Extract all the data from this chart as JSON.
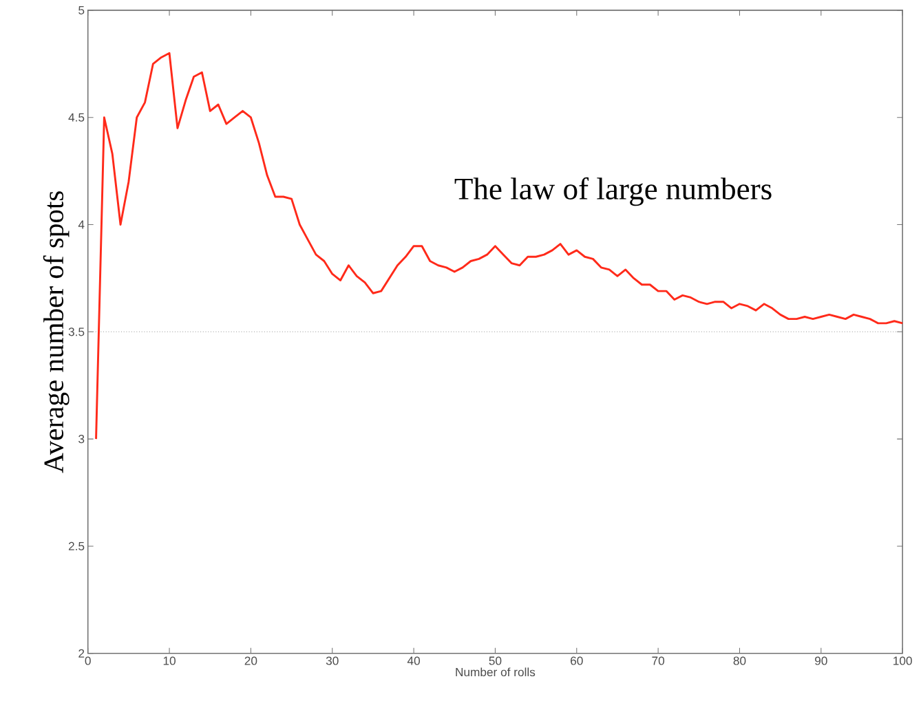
{
  "chart_data": {
    "type": "line",
    "annotations": [
      "The law of large numbers"
    ],
    "xlabel": "Number of rolls",
    "ylabel": "Average number of spots",
    "x": [
      1,
      2,
      3,
      4,
      5,
      6,
      7,
      8,
      9,
      10,
      11,
      12,
      13,
      14,
      15,
      16,
      17,
      18,
      19,
      20,
      21,
      22,
      23,
      24,
      25,
      26,
      27,
      28,
      29,
      30,
      31,
      32,
      33,
      34,
      35,
      36,
      37,
      38,
      39,
      40,
      41,
      42,
      43,
      44,
      45,
      46,
      47,
      48,
      49,
      50,
      51,
      52,
      53,
      54,
      55,
      56,
      57,
      58,
      59,
      60,
      61,
      62,
      63,
      64,
      65,
      66,
      67,
      68,
      69,
      70,
      71,
      72,
      73,
      74,
      75,
      76,
      77,
      78,
      79,
      80,
      81,
      82,
      83,
      84,
      85,
      86,
      87,
      88,
      89,
      90,
      91,
      92,
      93,
      94,
      95,
      96,
      97,
      98,
      99,
      100
    ],
    "series": [
      {
        "color": "#ff2a1a",
        "values": [
          3.0,
          4.5,
          4.33,
          4.0,
          4.2,
          4.5,
          4.57,
          4.75,
          4.78,
          4.8,
          4.45,
          4.58,
          4.69,
          4.71,
          4.53,
          4.56,
          4.47,
          4.5,
          4.53,
          4.5,
          4.38,
          4.23,
          4.13,
          4.13,
          4.12,
          4.0,
          3.93,
          3.86,
          3.83,
          3.77,
          3.74,
          3.81,
          3.76,
          3.73,
          3.68,
          3.69,
          3.75,
          3.81,
          3.85,
          3.9,
          3.9,
          3.83,
          3.81,
          3.8,
          3.78,
          3.8,
          3.83,
          3.84,
          3.86,
          3.9,
          3.86,
          3.82,
          3.81,
          3.85,
          3.85,
          3.86,
          3.88,
          3.91,
          3.86,
          3.88,
          3.85,
          3.84,
          3.8,
          3.79,
          3.76,
          3.79,
          3.75,
          3.72,
          3.72,
          3.69,
          3.69,
          3.65,
          3.67,
          3.66,
          3.64,
          3.63,
          3.64,
          3.64,
          3.61,
          3.63,
          3.62,
          3.6,
          3.63,
          3.61,
          3.58,
          3.56,
          3.56,
          3.57,
          3.56,
          3.57,
          3.58,
          3.57,
          3.56,
          3.58,
          3.57,
          3.56,
          3.54,
          3.54,
          3.55,
          3.54
        ]
      }
    ],
    "xlim": [
      0,
      100
    ],
    "ylim": [
      2,
      5
    ],
    "xticks": [
      0,
      10,
      20,
      30,
      40,
      50,
      60,
      70,
      80,
      90,
      100
    ],
    "yticks": [
      2,
      2.5,
      3,
      3.5,
      4,
      4.5,
      5
    ],
    "ref_lines": [
      {
        "axis": "y",
        "value": 3.5,
        "color": "#999999",
        "line_style": "dotted"
      }
    ]
  }
}
